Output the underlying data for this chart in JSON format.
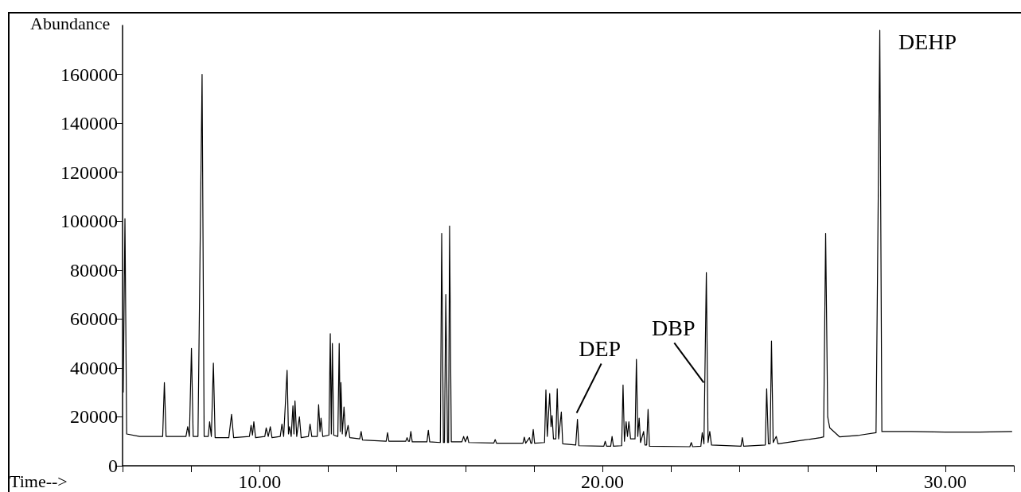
{
  "chart_data": {
    "type": "line",
    "xlabel": "Time-->",
    "ylabel": "Abundance",
    "color": "#000000",
    "marker": "none",
    "grid": false,
    "xlim": [
      6,
      32
    ],
    "ylim": [
      0,
      180000
    ],
    "xticks": [
      {
        "value": 6,
        "label": null
      },
      {
        "value": 8,
        "label": null
      },
      {
        "value": 10,
        "label": "10.00"
      },
      {
        "value": 12,
        "label": null
      },
      {
        "value": 14,
        "label": null
      },
      {
        "value": 16,
        "label": null
      },
      {
        "value": 18,
        "label": null
      },
      {
        "value": 20,
        "label": "20.00"
      },
      {
        "value": 22,
        "label": null
      },
      {
        "value": 24,
        "label": null
      },
      {
        "value": 26,
        "label": null
      },
      {
        "value": 28,
        "label": null
      },
      {
        "value": 30,
        "label": "30.00"
      },
      {
        "value": 32,
        "label": null
      }
    ],
    "yticks": [
      0,
      20000,
      40000,
      60000,
      80000,
      100000,
      120000,
      140000,
      160000
    ],
    "annotations": [
      {
        "text": "DEP",
        "x": 19.27,
        "y": 19000
      },
      {
        "text": "DBP",
        "x": 23.0,
        "y": 34000
      },
      {
        "text": "DEHP",
        "x": 28.09,
        "y": 178000
      }
    ],
    "x": [
      6.02,
      6.07,
      6.12,
      6.5,
      7.17,
      7.22,
      7.27,
      7.85,
      7.9,
      7.95,
      8.01,
      8.06,
      8.2,
      8.32,
      8.38,
      8.5,
      8.54,
      8.59,
      8.65,
      8.7,
      9.1,
      9.18,
      9.24,
      9.7,
      9.75,
      9.79,
      9.83,
      9.88,
      10.15,
      10.19,
      10.25,
      10.31,
      10.36,
      10.6,
      10.65,
      10.7,
      10.8,
      10.84,
      10.87,
      10.92,
      10.97,
      11.0,
      11.03,
      11.08,
      11.16,
      11.21,
      11.42,
      11.47,
      11.52,
      11.68,
      11.72,
      11.76,
      11.79,
      11.84,
      12.02,
      12.06,
      12.09,
      12.12,
      12.16,
      12.28,
      12.32,
      12.35,
      12.37,
      12.41,
      12.46,
      12.51,
      12.58,
      12.63,
      12.92,
      12.96,
      13.0,
      13.69,
      13.73,
      13.77,
      14.26,
      14.3,
      14.34,
      14.37,
      14.41,
      14.45,
      14.88,
      14.92,
      14.96,
      15.27,
      15.31,
      15.36,
      15.39,
      15.43,
      15.48,
      15.51,
      15.54,
      15.59,
      15.9,
      15.95,
      16.0,
      16.06,
      16.1,
      16.83,
      16.87,
      16.91,
      17.68,
      17.72,
      17.76,
      17.87,
      17.91,
      17.94,
      17.98,
      18.02,
      18.31,
      18.35,
      18.39,
      18.46,
      18.5,
      18.53,
      18.57,
      18.64,
      18.68,
      18.72,
      18.8,
      18.84,
      19.22,
      19.27,
      19.31,
      20.04,
      20.08,
      20.12,
      20.24,
      20.28,
      20.32,
      20.56,
      20.6,
      20.64,
      20.69,
      20.73,
      20.77,
      20.82,
      20.95,
      20.99,
      21.03,
      21.07,
      21.11,
      21.2,
      21.24,
      21.29,
      21.33,
      21.37,
      22.55,
      22.59,
      22.63,
      22.87,
      22.91,
      22.96,
      23.03,
      23.08,
      23.13,
      23.18,
      24.04,
      24.08,
      24.12,
      24.75,
      24.79,
      24.84,
      24.89,
      24.93,
      24.98,
      25.07,
      25.12,
      25.87,
      26.36,
      26.45,
      26.51,
      26.57,
      26.63,
      26.92,
      27.5,
      27.98,
      28.09,
      28.15,
      29.0,
      30.0,
      31.0,
      31.95
    ],
    "values": [
      30000,
      101000,
      13000,
      12000,
      12000,
      34000,
      12000,
      12000,
      16000,
      12000,
      48000,
      12000,
      12000,
      160000,
      12000,
      12000,
      18000,
      12000,
      42000,
      11500,
      11500,
      21000,
      11500,
      12000,
      16500,
      12500,
      18000,
      11500,
      12000,
      15500,
      12000,
      16000,
      11500,
      12000,
      17000,
      12000,
      39000,
      13000,
      16000,
      12000,
      24500,
      13000,
      26500,
      12000,
      20000,
      11500,
      12000,
      17000,
      12000,
      12000,
      25000,
      14000,
      19500,
      12000,
      12500,
      54000,
      13000,
      50000,
      12500,
      12000,
      50000,
      14000,
      34000,
      13000,
      24000,
      12000,
      16500,
      11500,
      11000,
      14000,
      10500,
      10000,
      13500,
      10000,
      10000,
      11500,
      10000,
      10000,
      14000,
      9800,
      9800,
      14500,
      9800,
      9500,
      95000,
      9500,
      9500,
      70000,
      9500,
      9500,
      98000,
      9800,
      9800,
      12000,
      9800,
      12000,
      9500,
      9300,
      10700,
      9200,
      9200,
      11700,
      9200,
      11500,
      9200,
      9200,
      14800,
      9200,
      9500,
      31000,
      12000,
      29500,
      16000,
      20500,
      11000,
      11000,
      31500,
      11000,
      22000,
      9000,
      8500,
      19000,
      8200,
      8000,
      10000,
      8000,
      8000,
      12000,
      8000,
      8200,
      33000,
      10000,
      18000,
      12000,
      18000,
      11000,
      11000,
      43500,
      12000,
      19500,
      9500,
      14000,
      8500,
      8500,
      23000,
      8000,
      7800,
      9500,
      7800,
      8000,
      13500,
      9000,
      79000,
      9500,
      14000,
      8500,
      8000,
      11500,
      8000,
      8500,
      31500,
      9000,
      9000,
      51000,
      9500,
      12000,
      9000,
      10500,
      11500,
      11800,
      95000,
      20000,
      15500,
      11800,
      12500,
      13500,
      178000,
      14000,
      14000,
      13800,
      13800,
      14000
    ]
  }
}
